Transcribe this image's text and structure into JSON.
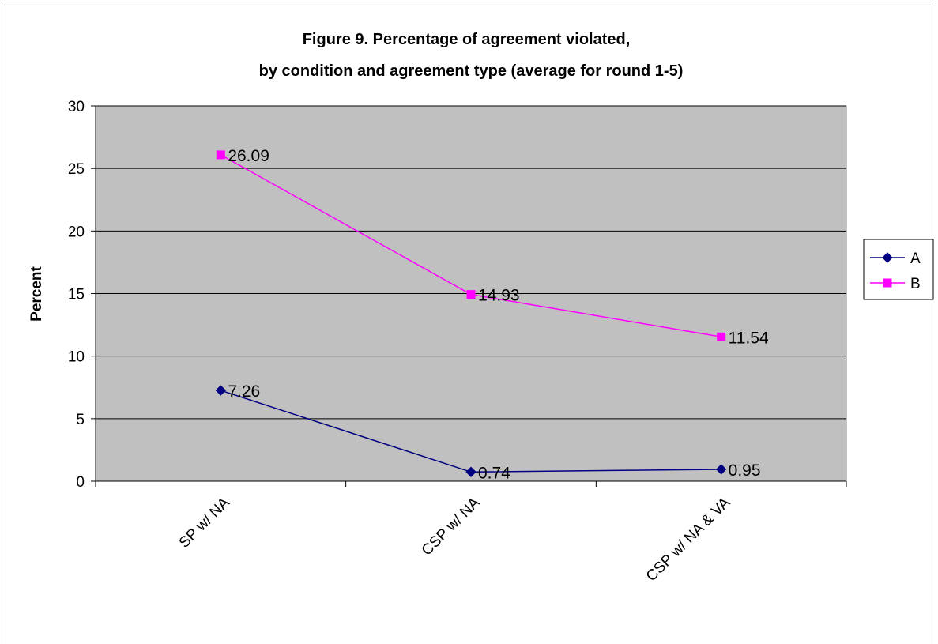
{
  "chart_data": {
    "type": "line",
    "title_lines": [
      "Figure 9. Percentage of agreement violated,",
      "by condition and agreement type (average for round 1-5)"
    ],
    "xlabel": "",
    "ylabel": "Percent",
    "categories": [
      "SP w/ NA",
      "CSP w/ NA",
      "CSP w/ NA & VA"
    ],
    "ylim": [
      0,
      30
    ],
    "yticks": [
      "0",
      "5",
      "10",
      "15",
      "20",
      "25",
      "30"
    ],
    "grid": true,
    "legend_position": "right",
    "plot_background": "#c0c0c0",
    "series": [
      {
        "name": "A",
        "values": [
          7.26,
          0.74,
          0.95
        ],
        "labels": [
          "7.26",
          "0.74",
          "0.95"
        ],
        "color": "#000080",
        "marker": "diamond"
      },
      {
        "name": "B",
        "values": [
          26.09,
          14.93,
          11.54
        ],
        "labels": [
          "26.09",
          "14.93",
          "11.54"
        ],
        "color": "#ff00ff",
        "marker": "square"
      }
    ]
  }
}
